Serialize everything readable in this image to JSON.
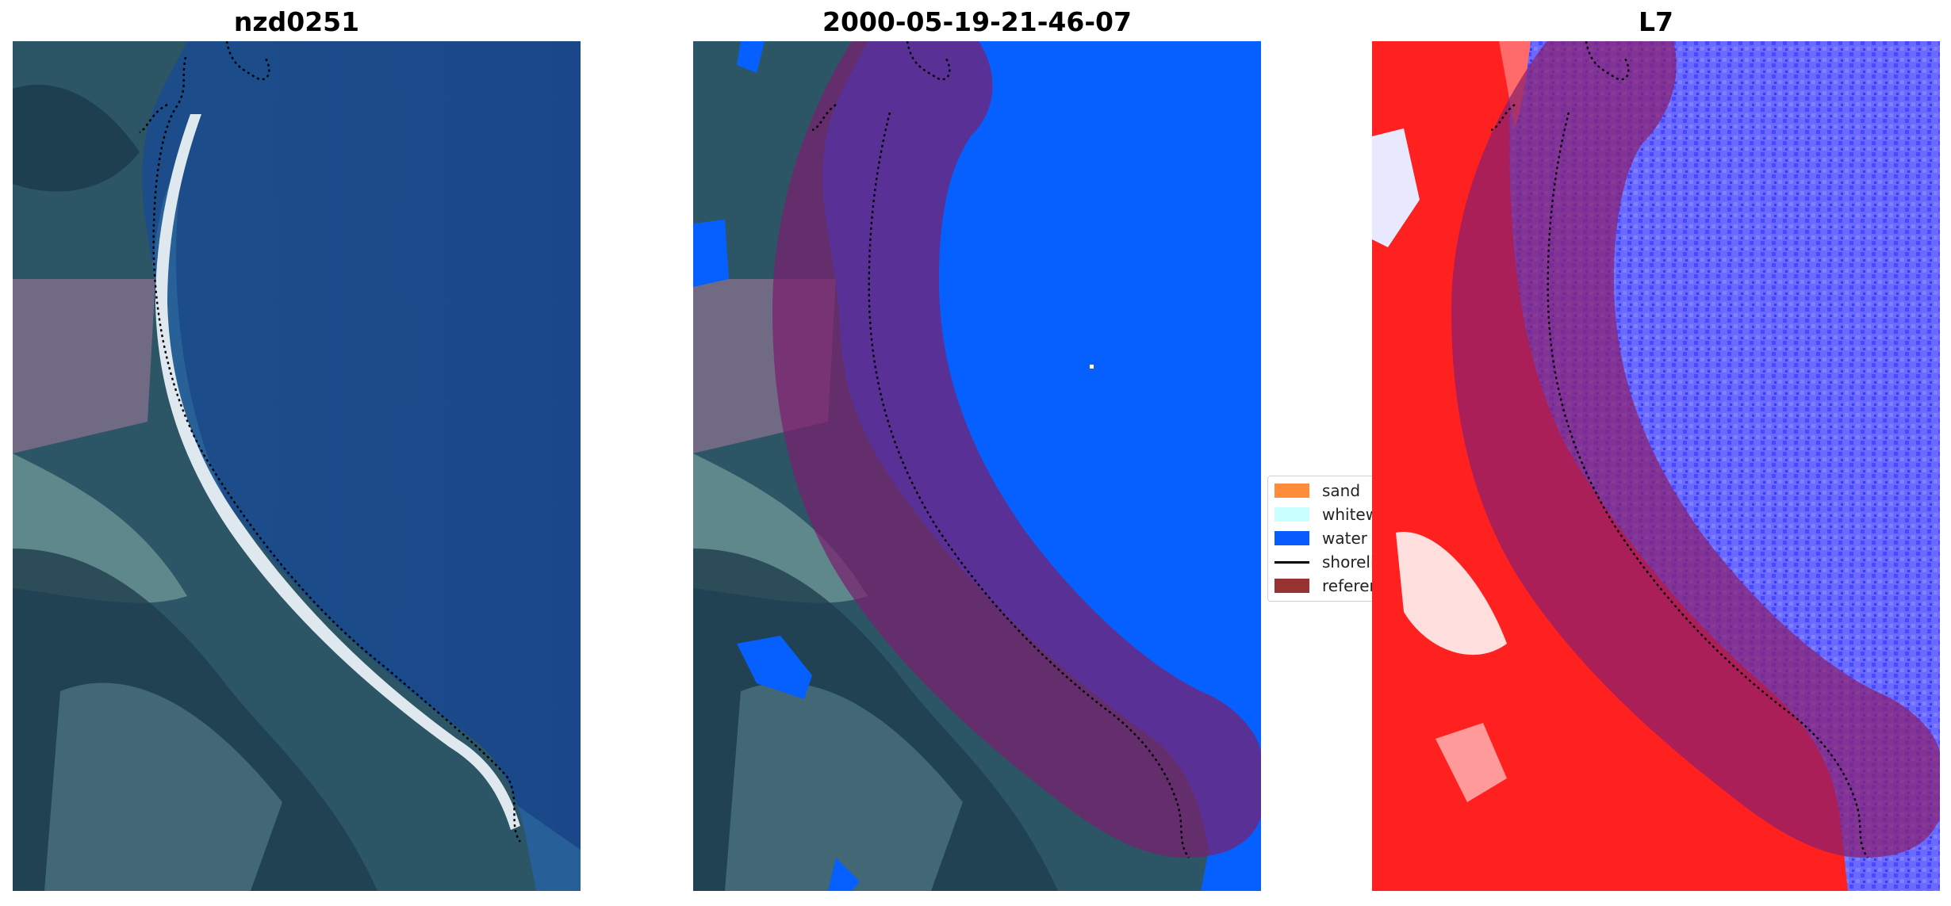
{
  "panels": [
    {
      "title": "nzd0251"
    },
    {
      "title": "2000-05-19-21-46-07"
    },
    {
      "title": "L7"
    }
  ],
  "legend": {
    "items": [
      {
        "label": "sand",
        "color": "#ff8c3a"
      },
      {
        "label": "whitewater",
        "color": "#c9ffff"
      },
      {
        "label": "water",
        "color": "#0a5cff"
      },
      {
        "label": "shoreline",
        "color": "#000000"
      },
      {
        "label": "reference",
        "color": "#993333"
      }
    ]
  },
  "colors": {
    "water_class": "#0660ff",
    "reference_buffer": "#8a1f4f",
    "index_positive": "#ff1a1a",
    "index_negative": "#5a5aff"
  }
}
